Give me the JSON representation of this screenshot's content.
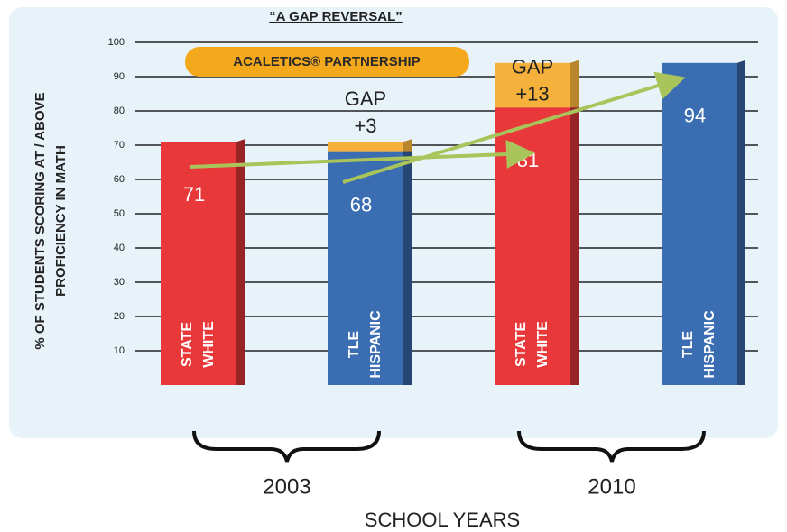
{
  "chart_data": {
    "type": "bar",
    "title": "“A GAP REVERSAL”",
    "banner": "ACALETICS® PARTNERSHIP",
    "y_label": [
      "% OF STUDENTS SCORING AT / ABOVE",
      "PROFICIENCY IN MATH"
    ],
    "x_label": "SCHOOL YEARS",
    "groups": [
      "2003",
      "2010"
    ],
    "categories": [
      [
        "STATE",
        "WHITE"
      ],
      [
        "TLE",
        "HISPANIC"
      ],
      [
        "STATE",
        "WHITE"
      ],
      [
        "TLE",
        "HISPANIC"
      ]
    ],
    "values": [
      71,
      68,
      81,
      94
    ],
    "colors": [
      "#e8383a",
      "#3b6db3",
      "#e8383a",
      "#3b6db3"
    ],
    "gap_values": [
      null,
      3,
      13,
      null
    ],
    "gap_labels": [
      null,
      [
        "GAP",
        "+3"
      ],
      [
        "GAP",
        "+13"
      ],
      null
    ],
    "gap_color": "#f6b13c",
    "ylim": [
      0,
      100
    ],
    "yticks": [
      10,
      20,
      30,
      40,
      50,
      60,
      70,
      80,
      90,
      100
    ],
    "grid": true
  }
}
